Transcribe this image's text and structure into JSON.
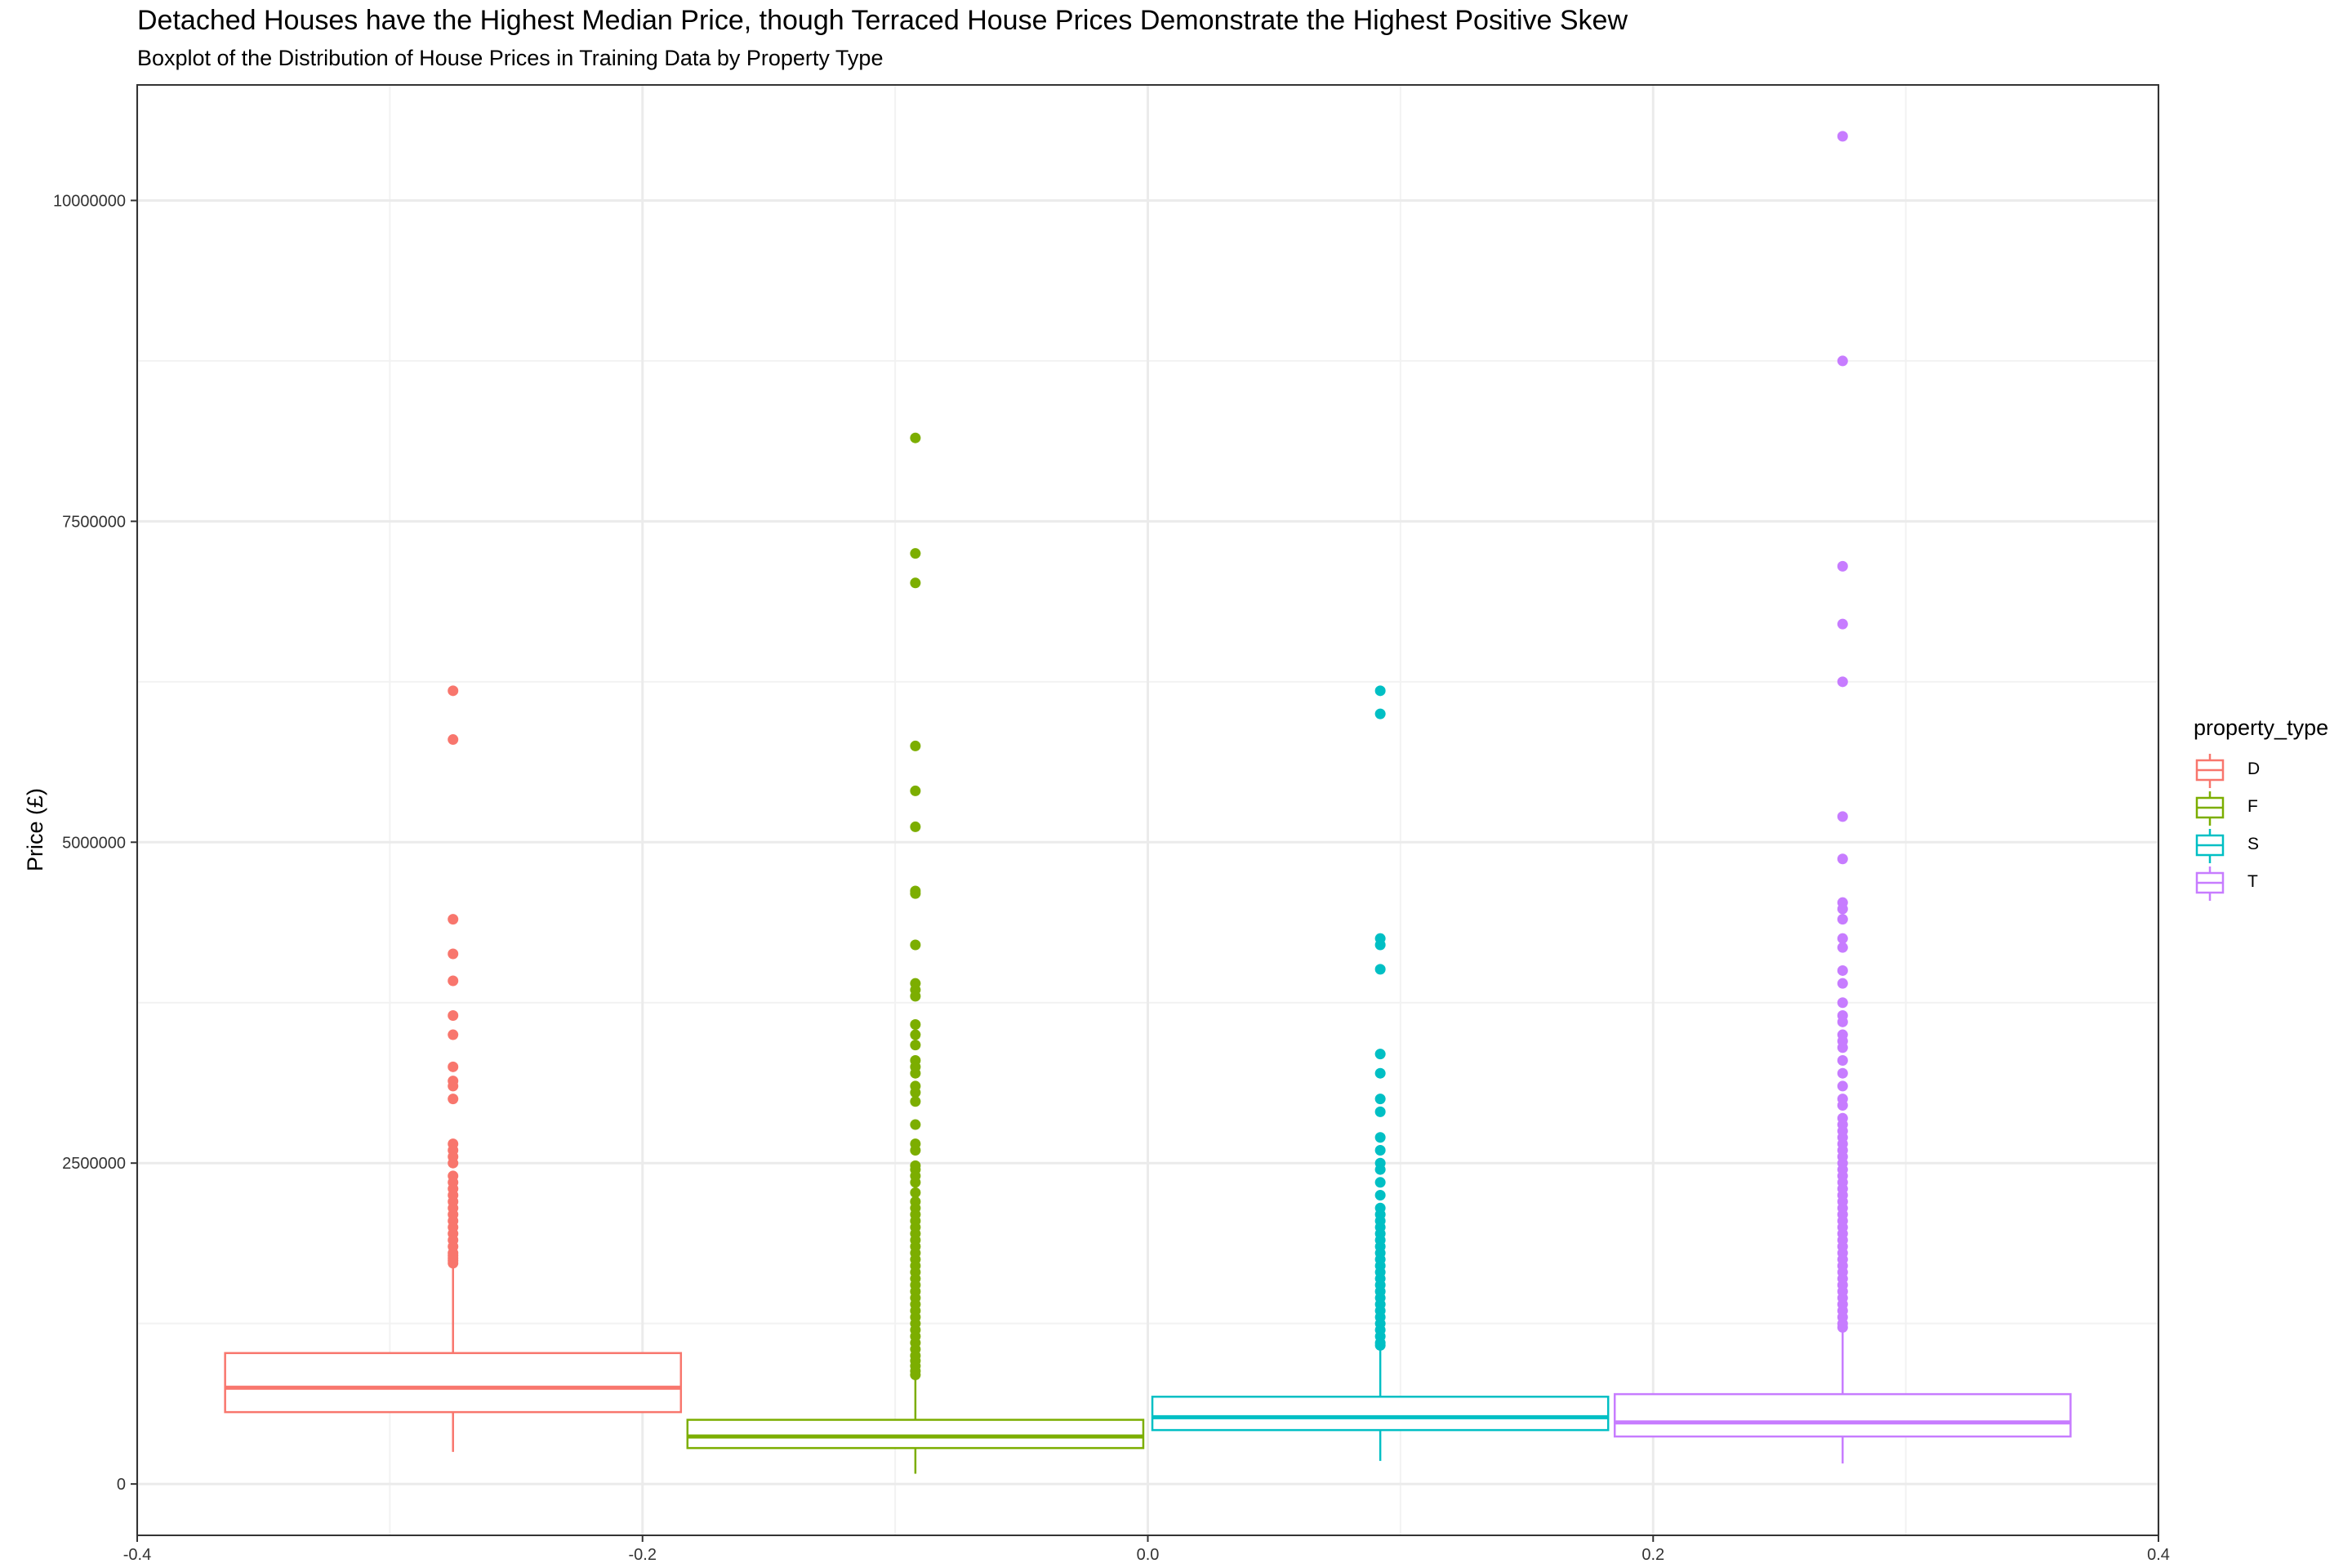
{
  "chart_data": {
    "type": "boxplot",
    "title": "Detached Houses have the Highest Median Price, though Terraced House Prices Demonstrate the Highest Positive Skew",
    "subtitle": "Boxplot of the Distribution of House Prices in Training Data by Property Type",
    "ylabel": "Price (£)",
    "xlabel": "",
    "xlim": [
      -0.4,
      0.4
    ],
    "ylim": [
      -400000,
      10900000
    ],
    "x_ticks": [
      -0.4,
      -0.2,
      0.0,
      0.2,
      0.4
    ],
    "x_tick_labels": [
      "-0.4",
      "-0.2",
      "0.0",
      "0.2",
      "0.4"
    ],
    "y_ticks": [
      0,
      2500000,
      5000000,
      7500000,
      10000000
    ],
    "y_tick_labels": [
      "0",
      "2500000",
      "5000000",
      "7500000",
      "10000000"
    ],
    "grid": true,
    "legend": {
      "title": "property_type",
      "position": "right"
    },
    "series": [
      {
        "name": "D",
        "color": "#F8766D",
        "x_range": [
          -0.3665,
          -0.1835
        ],
        "whisker_low": 250000,
        "q1": 560000,
        "median": 750000,
        "q3": 1020000,
        "whisker_high": 1700000,
        "outliers": [
          6180000,
          5800000,
          4400000,
          4130000,
          3920000,
          3650000,
          3500000,
          3250000,
          3140000,
          3100000,
          3000000,
          2650000,
          2600000,
          2550000,
          2500000,
          2400000,
          2350000,
          2300000,
          2250000,
          2200000,
          2150000,
          2100000,
          2050000,
          2000000,
          1950000,
          1900000,
          1850000,
          1800000,
          1780000,
          1760000,
          1740000,
          1720000
        ]
      },
      {
        "name": "F",
        "color": "#7CAE00",
        "x_range": [
          -0.1835,
          -0.0005
        ],
        "whisker_low": 80000,
        "q1": 280000,
        "median": 370000,
        "q3": 500000,
        "whisker_high": 830000,
        "outliers": [
          8150000,
          7250000,
          7020000,
          5750000,
          5400000,
          5120000,
          4620000,
          4600000,
          4200000,
          3900000,
          3850000,
          3800000,
          3580000,
          3500000,
          3420000,
          3300000,
          3250000,
          3200000,
          3100000,
          3050000,
          2980000,
          2800000,
          2650000,
          2600000,
          2480000,
          2450000,
          2400000,
          2350000,
          2270000,
          2200000,
          2150000,
          2100000,
          2050000,
          2000000,
          1950000,
          1900000,
          1850000,
          1800000,
          1750000,
          1700000,
          1650000,
          1600000,
          1550000,
          1500000,
          1450000,
          1400000,
          1350000,
          1300000,
          1250000,
          1200000,
          1150000,
          1100000,
          1050000,
          1000000,
          960000,
          920000,
          880000,
          850000
        ]
      },
      {
        "name": "S",
        "color": "#00BFC4",
        "x_range": [
          0.0005,
          0.1835
        ],
        "whisker_low": 180000,
        "q1": 420000,
        "median": 520000,
        "q3": 680000,
        "whisker_high": 1060000,
        "outliers": [
          6180000,
          6000000,
          4250000,
          4200000,
          4010000,
          3350000,
          3200000,
          3000000,
          2900000,
          2700000,
          2600000,
          2500000,
          2450000,
          2350000,
          2250000,
          2150000,
          2100000,
          2050000,
          2000000,
          1950000,
          1900000,
          1850000,
          1800000,
          1750000,
          1700000,
          1650000,
          1600000,
          1550000,
          1500000,
          1450000,
          1400000,
          1350000,
          1300000,
          1250000,
          1200000,
          1150000,
          1100000,
          1080000
        ]
      },
      {
        "name": "T",
        "color": "#C77CFF",
        "x_range": [
          0.1835,
          0.3665
        ],
        "whisker_low": 160000,
        "q1": 370000,
        "median": 480000,
        "q3": 700000,
        "whisker_high": 1200000,
        "outliers": [
          10500000,
          8750000,
          7150000,
          6700000,
          6250000,
          5200000,
          4870000,
          4530000,
          4480000,
          4400000,
          4250000,
          4180000,
          4000000,
          3900000,
          3750000,
          3650000,
          3600000,
          3500000,
          3450000,
          3400000,
          3300000,
          3200000,
          3100000,
          3000000,
          2950000,
          2850000,
          2800000,
          2750000,
          2700000,
          2650000,
          2600000,
          2550000,
          2500000,
          2450000,
          2400000,
          2350000,
          2300000,
          2250000,
          2200000,
          2150000,
          2100000,
          2050000,
          2000000,
          1950000,
          1900000,
          1850000,
          1800000,
          1750000,
          1700000,
          1650000,
          1600000,
          1550000,
          1500000,
          1450000,
          1400000,
          1350000,
          1300000,
          1250000,
          1220000
        ]
      }
    ]
  }
}
